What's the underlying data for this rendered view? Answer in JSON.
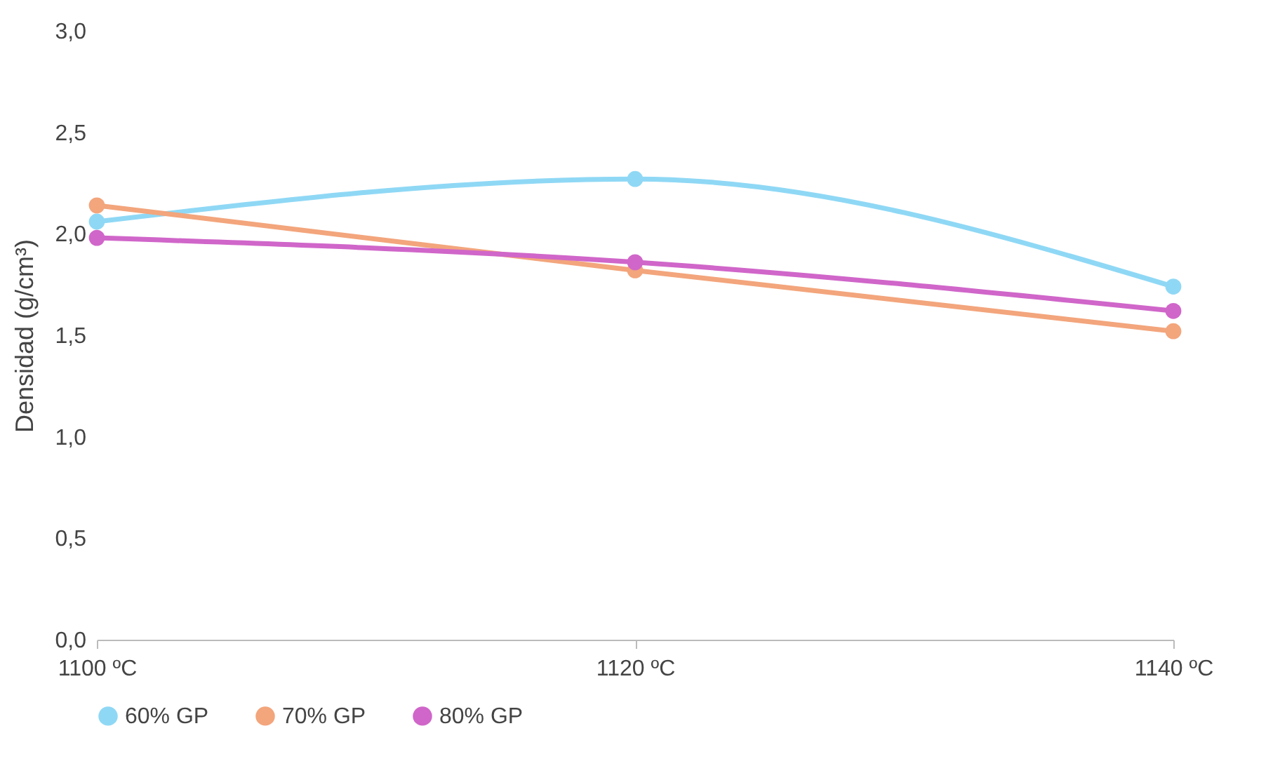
{
  "chart_data": {
    "type": "line",
    "ylabel": "Densidad (g/cm³)",
    "categories": [
      "1100 ºC",
      "1120 ºC",
      "1140 ºC"
    ],
    "series": [
      {
        "name": "60% GP",
        "color": "#8fd8f5",
        "values": [
          2.06,
          2.27,
          1.74
        ]
      },
      {
        "name": "70% GP",
        "color": "#f3a57c",
        "values": [
          2.14,
          1.82,
          1.52
        ]
      },
      {
        "name": "80% GP",
        "color": "#d066c9",
        "values": [
          1.98,
          1.86,
          1.62
        ]
      }
    ],
    "ylim": [
      0,
      3
    ],
    "yticks": [
      {
        "value": 0,
        "label": "0,0"
      },
      {
        "value": 0.5,
        "label": "0,5"
      },
      {
        "value": 1,
        "label": "1,0"
      },
      {
        "value": 1.5,
        "label": "1,5"
      },
      {
        "value": 2,
        "label": "2,0"
      },
      {
        "value": 2.5,
        "label": "2,5"
      },
      {
        "value": 3,
        "label": "3,0"
      }
    ],
    "grid": false,
    "legend": "bottom",
    "marker": "circle"
  }
}
